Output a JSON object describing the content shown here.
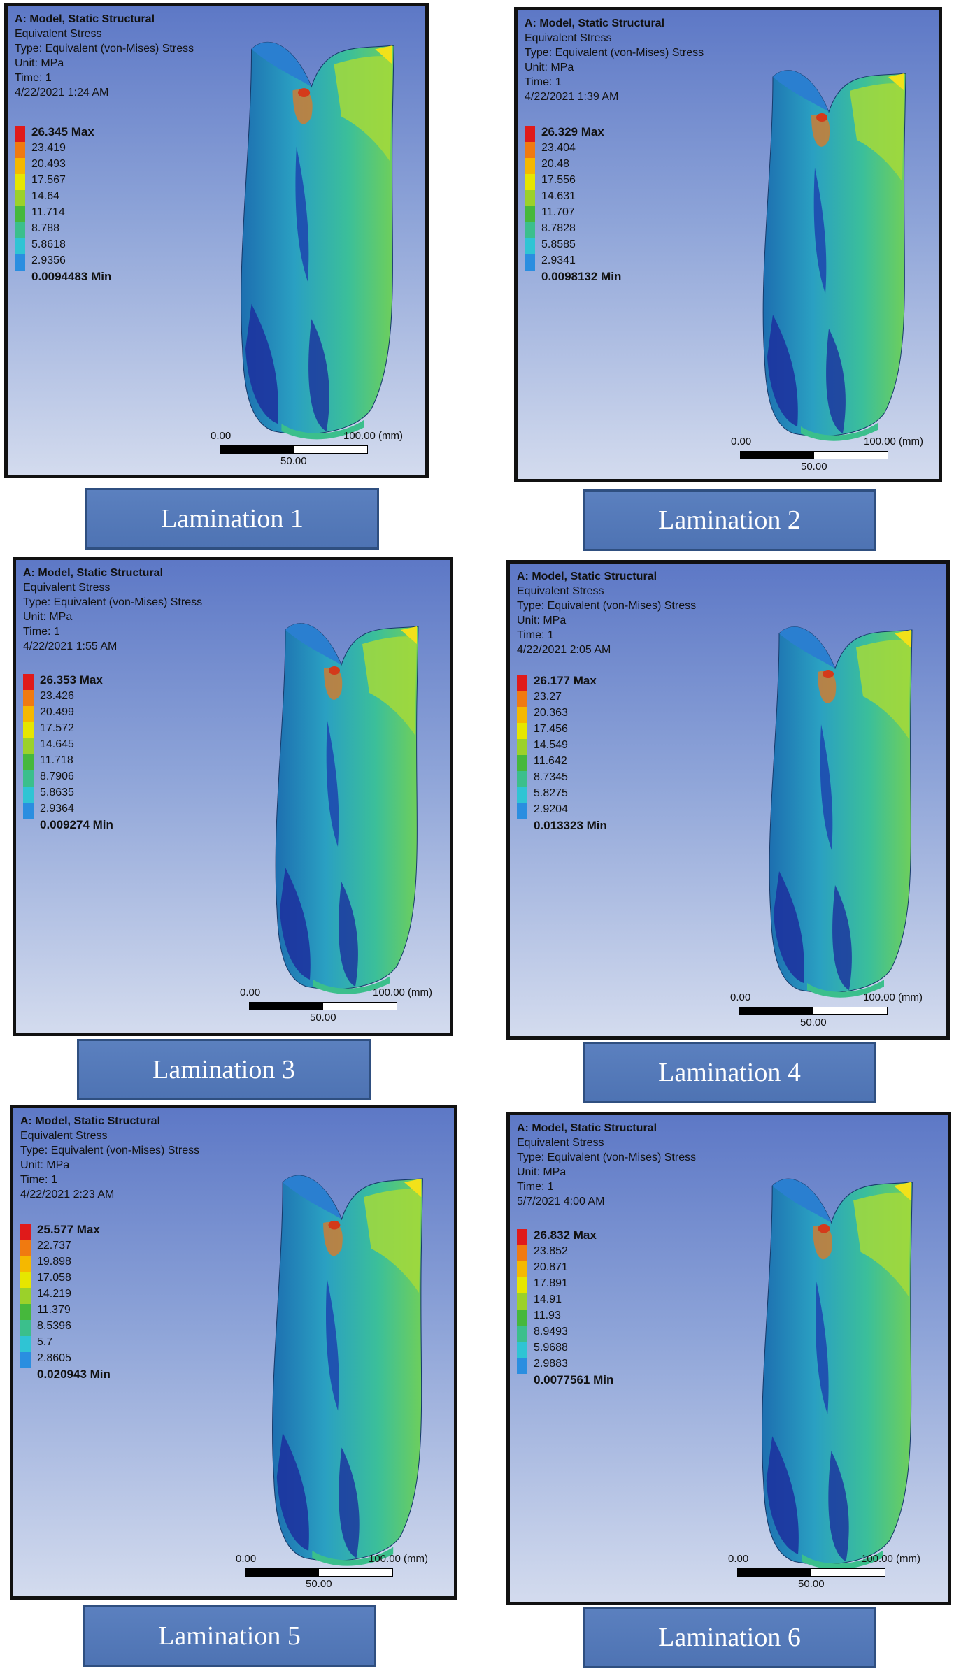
{
  "panels": [
    {
      "title": "A: Model, Static Structural",
      "line1": "Equivalent Stress",
      "line2": "Type: Equivalent (von-Mises) Stress",
      "line3": "Unit: MPa",
      "line4": "Time: 1",
      "date": "4/22/2021 1:24 AM",
      "legend": [
        "26.345 Max",
        "23.419",
        "20.493",
        "17.567",
        "14.64",
        "11.714",
        "8.788",
        "5.8618",
        "2.9356",
        "0.0094483 Min"
      ],
      "scale_start": "0.00",
      "scale_end": "100.00 (mm)",
      "scale_mid": "50.00",
      "caption": "Lamination 1"
    },
    {
      "title": "A: Model, Static Structural",
      "line1": "Equivalent Stress",
      "line2": "Type: Equivalent (von-Mises) Stress",
      "line3": "Unit: MPa",
      "line4": "Time: 1",
      "date": "4/22/2021 1:39 AM",
      "legend": [
        "26.329 Max",
        "23.404",
        "20.48",
        "17.556",
        "14.631",
        "11.707",
        "8.7828",
        "5.8585",
        "2.9341",
        "0.0098132 Min"
      ],
      "scale_start": "0.00",
      "scale_end": "100.00 (mm)",
      "scale_mid": "50.00",
      "caption": "Lamination 2"
    },
    {
      "title": "A: Model, Static Structural",
      "line1": "Equivalent Stress",
      "line2": "Type: Equivalent (von-Mises) Stress",
      "line3": "Unit: MPa",
      "line4": "Time: 1",
      "date": "4/22/2021 1:55 AM",
      "legend": [
        "26.353 Max",
        "23.426",
        "20.499",
        "17.572",
        "14.645",
        "11.718",
        "8.7906",
        "5.8635",
        "2.9364",
        "0.009274 Min"
      ],
      "scale_start": "0.00",
      "scale_end": "100.00 (mm)",
      "scale_mid": "50.00",
      "caption": "Lamination 3"
    },
    {
      "title": "A: Model, Static Structural",
      "line1": "Equivalent Stress",
      "line2": "Type: Equivalent (von-Mises) Stress",
      "line3": "Unit: MPa",
      "line4": "Time: 1",
      "date": "4/22/2021 2:05 AM",
      "legend": [
        "26.177 Max",
        "23.27",
        "20.363",
        "17.456",
        "14.549",
        "11.642",
        "8.7345",
        "5.8275",
        "2.9204",
        "0.013323 Min"
      ],
      "scale_start": "0.00",
      "scale_end": "100.00 (mm)",
      "scale_mid": "50.00",
      "caption": "Lamination 4"
    },
    {
      "title": "A: Model, Static Structural",
      "line1": "Equivalent Stress",
      "line2": "Type: Equivalent (von-Mises) Stress",
      "line3": "Unit: MPa",
      "line4": "Time: 1",
      "date": "4/22/2021 2:23 AM",
      "legend": [
        "25.577 Max",
        "22.737",
        "19.898",
        "17.058",
        "14.219",
        "11.379",
        "8.5396",
        "5.7",
        "2.8605",
        "0.020943 Min"
      ],
      "scale_start": "0.00",
      "scale_end": "100.00 (mm)",
      "scale_mid": "50.00",
      "caption": "Lamination 5"
    },
    {
      "title": "A: Model, Static Structural",
      "line1": "Equivalent Stress",
      "line2": "Type: Equivalent (von-Mises) Stress",
      "line3": "Unit: MPa",
      "line4": "Time: 1",
      "date": "5/7/2021 4:00 AM",
      "legend": [
        "26.832 Max",
        "23.852",
        "20.871",
        "17.891",
        "14.91",
        "11.93",
        "8.9493",
        "5.9688",
        "2.9883",
        "0.0077561 Min"
      ],
      "scale_start": "0.00",
      "scale_end": "100.00 (mm)",
      "scale_mid": "50.00",
      "caption": "Lamination 6"
    }
  ],
  "legend_colors": [
    "#e01a1a",
    "#f07a10",
    "#f5b800",
    "#e6e600",
    "#9bd12a",
    "#46b83c",
    "#3bbf8c",
    "#2fc4d4",
    "#2a8ee0",
    "#1c2f9e"
  ]
}
